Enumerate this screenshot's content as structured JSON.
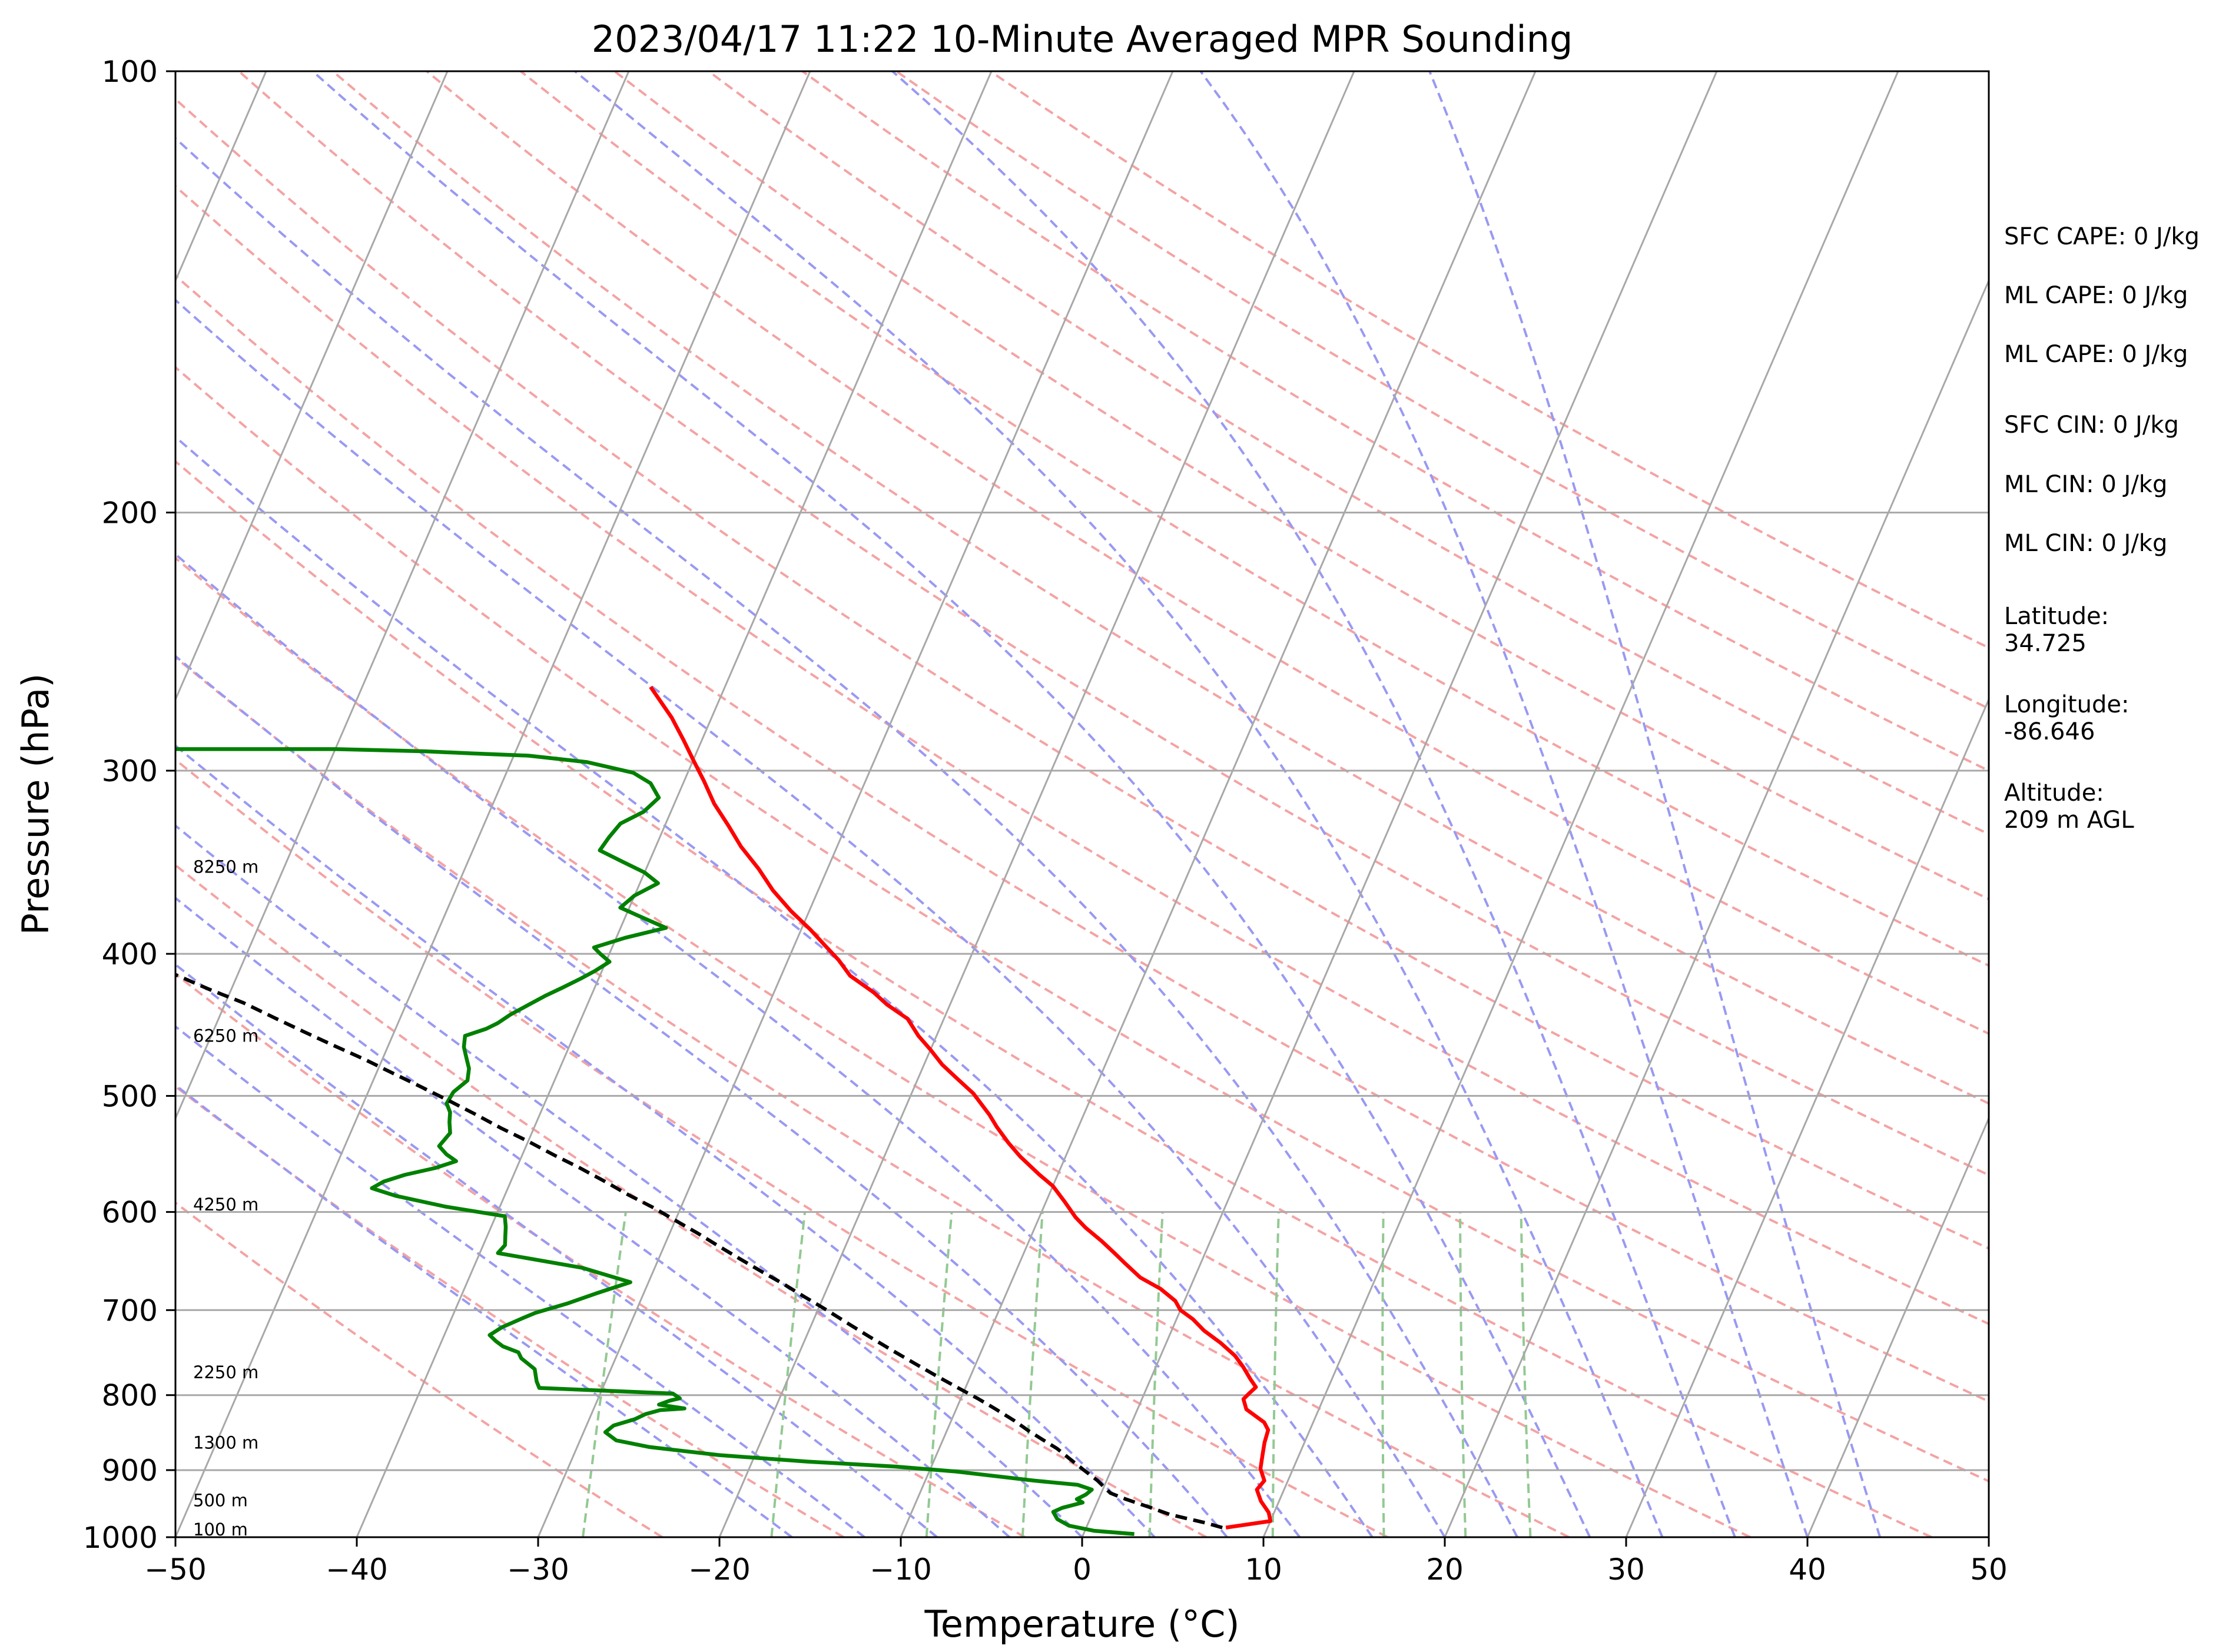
{
  "chart_data": {
    "type": "line",
    "subtype": "skew-t log-p sounding",
    "title": "2023/04/17 11:22 10-Minute Averaged MPR Sounding",
    "xlabel": "Temperature (°C)",
    "ylabel": "Pressure (hPa)",
    "xlim": [
      -50,
      50
    ],
    "ylim": [
      1000,
      100
    ],
    "y_scale": "log",
    "grid": true,
    "x_ticks": [
      "−50",
      "−40",
      "−30",
      "−20",
      "−10",
      "0",
      "10",
      "20",
      "30",
      "40",
      "50"
    ],
    "y_ticks": [
      "100",
      "200",
      "300",
      "400",
      "500",
      "600",
      "700",
      "800",
      "900",
      "1000"
    ],
    "series": [
      {
        "color": "#ff0000",
        "points": [
          [
            7.7,
            985
          ],
          [
            10.0,
            975
          ],
          [
            9.7,
            962
          ],
          [
            9.0,
            945
          ],
          [
            8.5,
            928
          ],
          [
            8.7,
            915
          ],
          [
            8.2,
            898
          ],
          [
            8.0,
            880
          ],
          [
            7.8,
            862
          ],
          [
            7.7,
            845
          ],
          [
            7.3,
            835
          ],
          [
            6.0,
            818
          ],
          [
            5.6,
            805
          ],
          [
            5.8,
            797
          ],
          [
            6.0,
            790
          ],
          [
            5.5,
            780
          ],
          [
            4.8,
            765
          ],
          [
            4.1,
            752
          ],
          [
            3.0,
            737
          ],
          [
            1.8,
            723
          ],
          [
            0.9,
            710
          ],
          [
            0.0,
            700
          ],
          [
            -0.5,
            690
          ],
          [
            -1.6,
            677
          ],
          [
            -3.0,
            665
          ],
          [
            -4.2,
            650
          ],
          [
            -5.0,
            640
          ],
          [
            -6.0,
            628
          ],
          [
            -7.2,
            615
          ],
          [
            -8.0,
            605
          ],
          [
            -9.0,
            590
          ],
          [
            -10.0,
            576
          ],
          [
            -11.0,
            566
          ],
          [
            -12.5,
            550
          ],
          [
            -13.5,
            538
          ],
          [
            -14.5,
            525
          ],
          [
            -15.2,
            515
          ],
          [
            -16.6,
            498
          ],
          [
            -17.8,
            487
          ],
          [
            -19.0,
            476
          ],
          [
            -20.0,
            465
          ],
          [
            -21.0,
            455
          ],
          [
            -22.0,
            443
          ],
          [
            -23.5,
            433
          ],
          [
            -24.5,
            425
          ],
          [
            -26.2,
            414
          ],
          [
            -27.2,
            404
          ],
          [
            -28.4,
            394
          ],
          [
            -29.5,
            385
          ],
          [
            -31.0,
            374
          ],
          [
            -32.5,
            362
          ],
          [
            -33.8,
            350
          ],
          [
            -35.3,
            338
          ],
          [
            -36.5,
            327
          ],
          [
            -37.8,
            316
          ],
          [
            -38.9,
            305
          ],
          [
            -40.0,
            295
          ],
          [
            -41.0,
            286
          ],
          [
            -42.2,
            276
          ],
          [
            -44.1,
            263
          ]
        ]
      },
      {
        "color": "#008000",
        "points": [
          [
            2.8,
            995
          ],
          [
            0.5,
            990
          ],
          [
            -1.0,
            982
          ],
          [
            -1.8,
            972
          ],
          [
            -2.2,
            961
          ],
          [
            -1.8,
            955
          ],
          [
            -0.8,
            947
          ],
          [
            -1.2,
            942
          ],
          [
            -0.8,
            935
          ],
          [
            -0.6,
            928
          ],
          [
            -1.5,
            921
          ],
          [
            -4.0,
            915
          ],
          [
            -8.5,
            902
          ],
          [
            -12.0,
            895
          ],
          [
            -17.0,
            888
          ],
          [
            -22.0,
            879
          ],
          [
            -26.0,
            868
          ],
          [
            -28.0,
            859
          ],
          [
            -28.8,
            848
          ],
          [
            -28.5,
            839
          ],
          [
            -27.5,
            831
          ],
          [
            -27.0,
            824
          ],
          [
            -26.3,
            819
          ],
          [
            -25.0,
            817
          ],
          [
            -26.5,
            812
          ],
          [
            -26.0,
            807
          ],
          [
            -25.5,
            804
          ],
          [
            -26.0,
            798
          ],
          [
            -33.5,
            791
          ],
          [
            -33.8,
            783
          ],
          [
            -34.2,
            768
          ],
          [
            -35.2,
            755
          ],
          [
            -35.5,
            748
          ],
          [
            -36.5,
            741
          ],
          [
            -37.0,
            735
          ],
          [
            -37.5,
            728
          ],
          [
            -37.0,
            719
          ],
          [
            -36.0,
            708
          ],
          [
            -35.5,
            703
          ],
          [
            -34.0,
            693
          ],
          [
            -32.5,
            681
          ],
          [
            -31.0,
            670
          ],
          [
            -34.0,
            655
          ],
          [
            -39.0,
            640
          ],
          [
            -38.8,
            632
          ],
          [
            -39.0,
            623
          ],
          [
            -39.2,
            614
          ],
          [
            -39.5,
            604
          ],
          [
            -43.0,
            595
          ],
          [
            -46.0,
            585
          ],
          [
            -47.5,
            578
          ],
          [
            -47.0,
            572
          ],
          [
            -46.0,
            566
          ],
          [
            -44.5,
            560
          ],
          [
            -43.5,
            554
          ],
          [
            -44.2,
            548
          ],
          [
            -44.8,
            541
          ],
          [
            -44.5,
            530
          ],
          [
            -44.8,
            521
          ],
          [
            -45.0,
            513
          ],
          [
            -45.4,
            506
          ],
          [
            -45.3,
            497
          ],
          [
            -44.8,
            488
          ],
          [
            -45.0,
            479
          ],
          [
            -45.4,
            471
          ],
          [
            -45.8,
            463
          ],
          [
            -46.0,
            455
          ],
          [
            -45.0,
            450
          ],
          [
            -44.5,
            446
          ],
          [
            -44.0,
            440
          ],
          [
            -43.2,
            433
          ],
          [
            -42.5,
            427
          ],
          [
            -41.8,
            422
          ],
          [
            -41.0,
            416
          ],
          [
            -40.4,
            411
          ],
          [
            -39.8,
            405
          ],
          [
            -40.5,
            400
          ],
          [
            -41.0,
            396
          ],
          [
            -39.5,
            390
          ],
          [
            -37.5,
            384
          ],
          [
            -39.0,
            378
          ],
          [
            -40.5,
            372
          ],
          [
            -40.0,
            365
          ],
          [
            -39.0,
            358
          ],
          [
            -40.0,
            352
          ],
          [
            -41.5,
            346
          ],
          [
            -43.0,
            340
          ],
          [
            -42.8,
            333
          ],
          [
            -42.5,
            326
          ],
          [
            -41.5,
            320
          ],
          [
            -41.0,
            313
          ],
          [
            -41.8,
            306
          ],
          [
            -43.0,
            301
          ],
          [
            -45.8,
            296
          ],
          [
            -49.2,
            293
          ],
          [
            -52.3,
            292
          ],
          [
            -55.0,
            291
          ],
          [
            -60.0,
            290
          ],
          [
            -66.0,
            290
          ],
          [
            -70.0,
            290
          ],
          [
            -74.8,
            290
          ]
        ]
      },
      {
        "color": "#000000",
        "dashed": true,
        "points": [
          [
            7.5,
            985
          ],
          [
            6.5,
            978
          ],
          [
            4.3,
            965
          ],
          [
            3.0,
            954
          ],
          [
            1.5,
            942
          ],
          [
            0.5,
            933
          ],
          [
            0.0,
            924
          ],
          [
            -0.5,
            915
          ],
          [
            -1.5,
            900
          ],
          [
            -2.5,
            885
          ],
          [
            -3.5,
            870
          ],
          [
            -4.5,
            858
          ],
          [
            -5.5,
            846
          ],
          [
            -6.5,
            833
          ],
          [
            -7.8,
            818
          ],
          [
            -9.0,
            805
          ],
          [
            -10.5,
            790
          ],
          [
            -12.0,
            775
          ],
          [
            -13.5,
            760
          ],
          [
            -15.0,
            745
          ],
          [
            -16.5,
            730
          ],
          [
            -18.0,
            715
          ],
          [
            -19.5,
            700
          ],
          [
            -21.0,
            686
          ],
          [
            -22.5,
            672
          ],
          [
            -24.0,
            659
          ],
          [
            -25.5,
            646
          ],
          [
            -27.0,
            633
          ],
          [
            -28.5,
            620
          ],
          [
            -30.0,
            608
          ],
          [
            -31.5,
            596
          ],
          [
            -33.2,
            584
          ],
          [
            -34.8,
            572
          ],
          [
            -36.5,
            560
          ],
          [
            -38.2,
            549
          ],
          [
            -40.0,
            537
          ],
          [
            -41.8,
            526
          ],
          [
            -43.5,
            515
          ],
          [
            -45.3,
            504
          ],
          [
            -47.2,
            493
          ],
          [
            -49.0,
            483
          ],
          [
            -51.0,
            472
          ],
          [
            -53.0,
            462
          ],
          [
            -55.0,
            452
          ],
          [
            -57.0,
            442
          ],
          [
            -59.0,
            432
          ],
          [
            -61.2,
            423
          ],
          [
            -63.5,
            413
          ],
          [
            -65.8,
            404
          ],
          [
            -68.0,
            395
          ],
          [
            -70.5,
            386
          ],
          [
            -73.0,
            377
          ],
          [
            -75.5,
            368
          ],
          [
            -78.0,
            359
          ],
          [
            -80.5,
            351
          ],
          [
            -83.0,
            342
          ],
          [
            -86.0,
            334
          ],
          [
            -88.8,
            326
          ],
          [
            -91.8,
            318
          ],
          [
            -95.0,
            310
          ],
          [
            -98.0,
            302
          ],
          [
            -101.0,
            295
          ],
          [
            -104.5,
            288
          ],
          [
            -108.0,
            281
          ],
          [
            -111.5,
            274
          ],
          [
            -115.0,
            267
          ],
          [
            -118.5,
            260
          ]
        ]
      }
    ],
    "reference_lines": {
      "isotherm_color": "#a8a8a8",
      "dry_adiabat_color": "#f4a3a3",
      "moist_adiabat_color": "#9999f2",
      "mixing_ratio_color": "#93c993"
    },
    "height_labels": [
      {
        "label": "100 m",
        "pressure": 988
      },
      {
        "label": "500 m",
        "pressure": 944
      },
      {
        "label": "1300 m",
        "pressure": 862
      },
      {
        "label": "2250 m",
        "pressure": 772
      },
      {
        "label": "4250 m",
        "pressure": 593
      },
      {
        "label": "6250 m",
        "pressure": 455
      },
      {
        "label": "8250 m",
        "pressure": 349
      }
    ]
  },
  "side_panel": [
    "SFC CAPE: 0 J/kg",
    "ML CAPE: 0 J/kg",
    "ML CAPE: 0 J/kg",
    "SFC CIN: 0 J/kg",
    "ML CIN: 0 J/kg",
    "ML CIN: 0 J/kg",
    "Latitude:",
    "34.725",
    "Longitude:",
    "-86.646",
    "Altitude:",
    "209 m AGL"
  ]
}
